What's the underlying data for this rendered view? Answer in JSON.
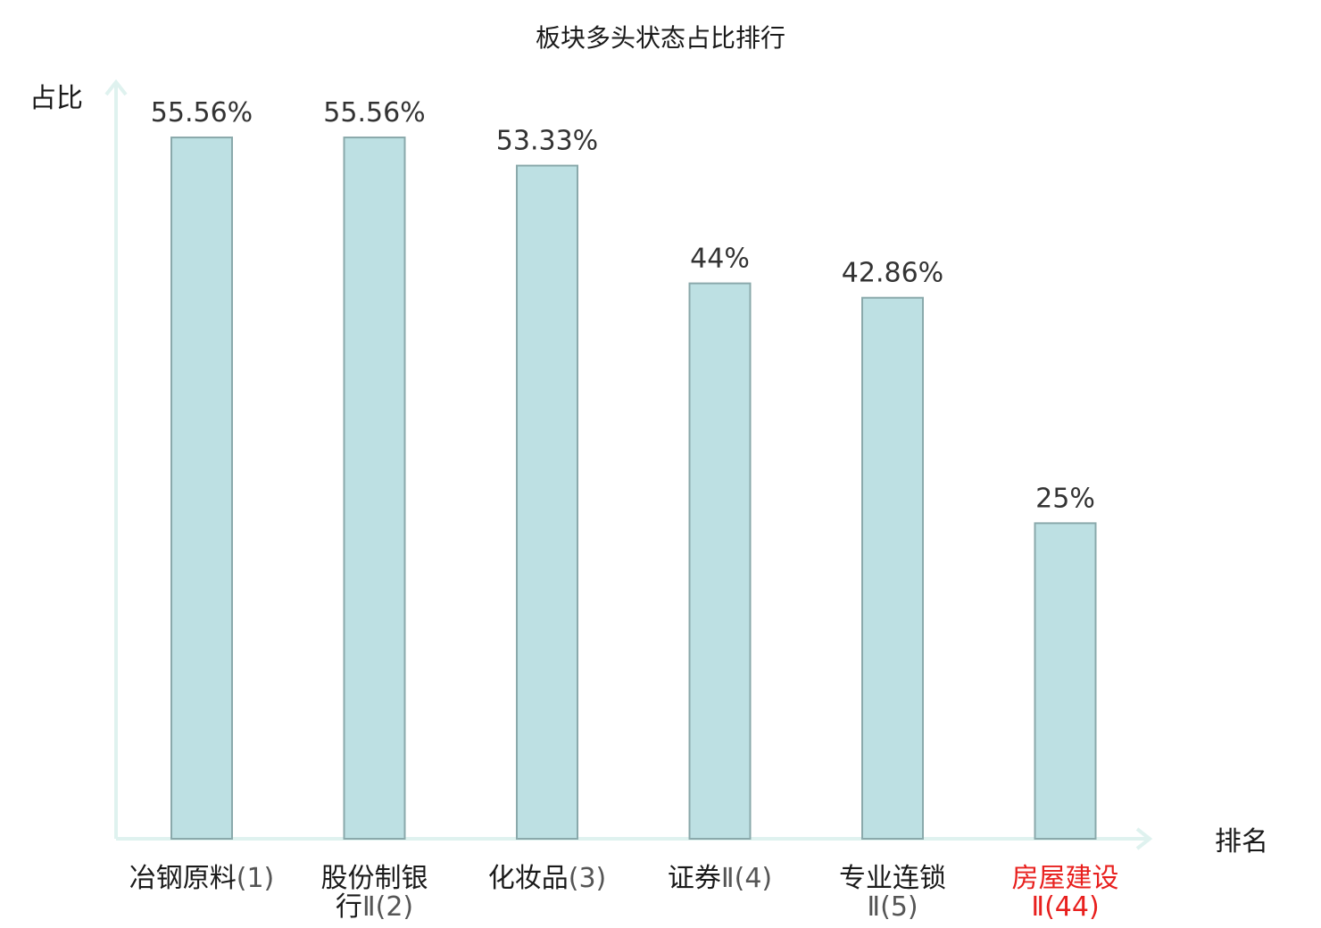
{
  "chart_data": {
    "type": "bar",
    "title": "板块多头状态占比排行",
    "xlabel": "排名",
    "ylabel": "占比",
    "ylim": [
      0,
      60
    ],
    "grid": false,
    "categories": [
      {
        "lines": [
          {
            "name": "冶钢原料",
            "rank": "(1)"
          }
        ]
      },
      {
        "lines": [
          {
            "name": "股份制银",
            "rank": ""
          },
          {
            "name": "行",
            "rank": "Ⅱ(2)"
          }
        ]
      },
      {
        "lines": [
          {
            "name": "化妆品",
            "rank": "(3)"
          }
        ]
      },
      {
        "lines": [
          {
            "name": "证券",
            "rank": "Ⅱ(4)"
          }
        ]
      },
      {
        "lines": [
          {
            "name": "专业连锁",
            "rank": ""
          },
          {
            "name": "",
            "rank": "Ⅱ(5)"
          }
        ]
      },
      {
        "lines": [
          {
            "name": "房屋建设",
            "rank": ""
          },
          {
            "name": "",
            "rank": "Ⅱ(44)"
          }
        ]
      }
    ],
    "values": [
      55.56,
      55.56,
      53.33,
      44,
      42.86,
      25
    ],
    "value_labels": [
      "55.56%",
      "55.56%",
      "53.33%",
      "44%",
      "42.86%",
      "25%"
    ],
    "highlight_index": 5,
    "colors": {
      "bar_fill": "#bde0e3",
      "bar_stroke": "#8aa9ab",
      "axis": "#dff2ef",
      "highlight_text": "#e8201e"
    }
  }
}
